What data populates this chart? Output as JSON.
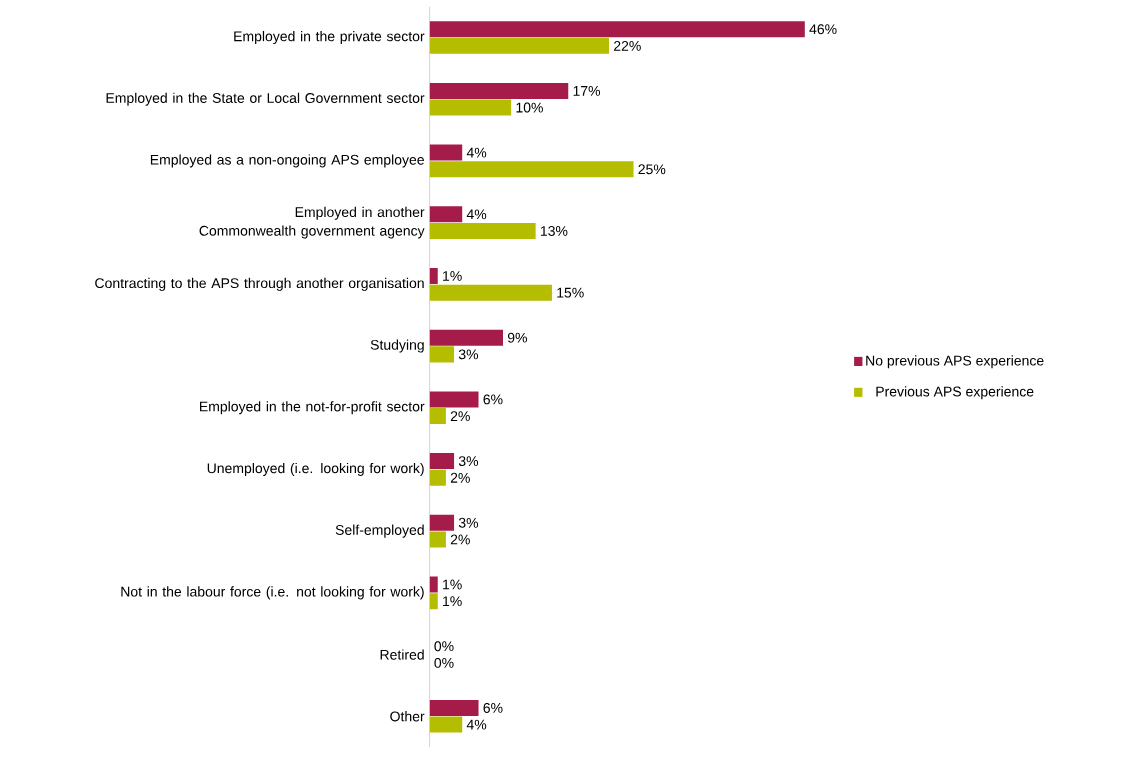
{
  "chart_data": {
    "type": "bar",
    "orientation": "horizontal",
    "legend": "right",
    "categories": [
      "Employed in the private sector",
      "Employed in the State or Local Government sector",
      "Employed as a non-ongoing APS employee",
      "Employed in another Commonwealth government agency",
      "Contracting to the APS through another organisation",
      "Studying",
      "Employed in the not-for-profit sector",
      "Unemployed (i.e. looking for work)",
      "Self-employed",
      "Not in the labour force (i.e. not looking for work)",
      "Retired",
      "Other"
    ],
    "series": [
      {
        "name": "No previous APS experience",
        "color": "#a51c4a",
        "values": [
          46,
          17,
          4,
          4,
          1,
          9,
          6,
          3,
          3,
          1,
          0,
          6
        ],
        "value_labels": [
          "46%",
          "17%",
          "4%",
          "4%",
          "1%",
          "9%",
          "6%",
          "3%",
          "3%",
          "1%",
          "0%",
          "6%"
        ]
      },
      {
        "name": "Previous APS experience",
        "color": "#b5bd00",
        "values": [
          22,
          10,
          25,
          13,
          15,
          3,
          2,
          2,
          2,
          1,
          0,
          4
        ],
        "value_labels": [
          "22%",
          "10%",
          "25%",
          "13%",
          "15%",
          "3%",
          "2%",
          "2%",
          "2%",
          "1%",
          "0%",
          "4%"
        ]
      }
    ]
  }
}
